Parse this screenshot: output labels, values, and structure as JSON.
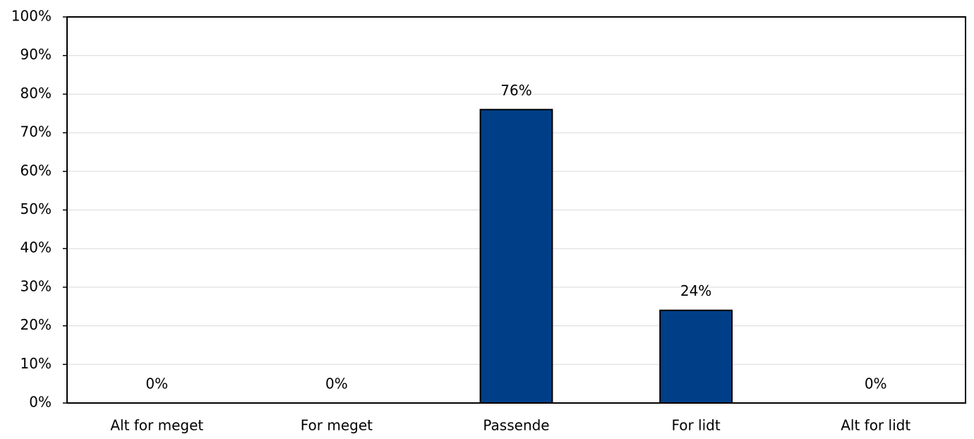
{
  "chart_data": {
    "type": "bar",
    "categories": [
      "Alt for meget",
      "For meget",
      "Passende",
      "For lidt",
      "Alt for lidt"
    ],
    "values": [
      0,
      0,
      76,
      24,
      0
    ],
    "value_labels": [
      "0%",
      "0%",
      "76%",
      "24%",
      "0%"
    ],
    "color": "#003f87",
    "ylim": [
      0,
      100
    ],
    "yticks": [
      {
        "value": 0,
        "label": "0%"
      },
      {
        "value": 10,
        "label": "10%"
      },
      {
        "value": 20,
        "label": "20%"
      },
      {
        "value": 30,
        "label": "30%"
      },
      {
        "value": 40,
        "label": "40%"
      },
      {
        "value": 50,
        "label": "50%"
      },
      {
        "value": 60,
        "label": "60%"
      },
      {
        "value": 70,
        "label": "70%"
      },
      {
        "value": 80,
        "label": "80%"
      },
      {
        "value": 90,
        "label": "90%"
      },
      {
        "value": 100,
        "label": "100%"
      }
    ],
    "grid": true
  }
}
